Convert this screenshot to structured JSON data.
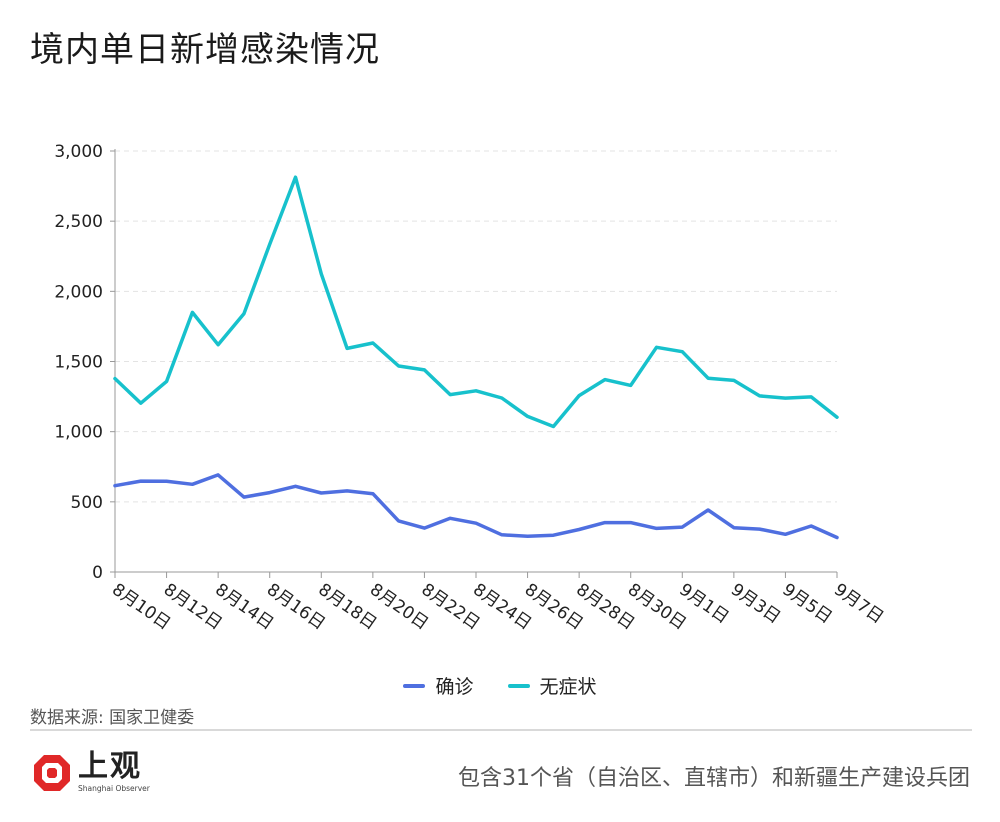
{
  "page": {
    "title": "境内单日新增感染情况"
  },
  "chart_data": {
    "type": "line",
    "title": "境内单日新增感染情况",
    "categories": [
      "8月10日",
      "8月11日",
      "8月12日",
      "8月13日",
      "8月14日",
      "8月15日",
      "8月16日",
      "8月17日",
      "8月18日",
      "8月19日",
      "8月20日",
      "8月21日",
      "8月22日",
      "8月23日",
      "8月24日",
      "8月25日",
      "8月26日",
      "8月27日",
      "8月28日",
      "8月29日",
      "8月30日",
      "8月31日",
      "9月1日",
      "9月2日",
      "9月3日",
      "9月4日",
      "9月5日",
      "9月6日",
      "9月7日"
    ],
    "xticks": [
      "8月10日",
      "8月12日",
      "8月14日",
      "8月16日",
      "8月18日",
      "8月20日",
      "8月22日",
      "8月24日",
      "8月26日",
      "8月28日",
      "8月30日",
      "9月1日",
      "9月3日",
      "9月5日",
      "9月7日"
    ],
    "yticks": [
      "0",
      "500",
      "1,000",
      "1,500",
      "2,000",
      "2,500",
      "3,000"
    ],
    "ylim": [
      0,
      3000
    ],
    "grid": true,
    "legend_position": "bottom-center",
    "series": [
      {
        "name": "确诊",
        "color": "#4f6fe0",
        "values": [
          615,
          648,
          647,
          625,
          692,
          534,
          566,
          611,
          563,
          578,
          558,
          364,
          313,
          383,
          348,
          265,
          255,
          262,
          303,
          352,
          352,
          311,
          320,
          442,
          316,
          306,
          269,
          328,
          246
        ]
      },
      {
        "name": "无症状",
        "color": "#17c1cc",
        "values": [
          1378,
          1203,
          1358,
          1850,
          1620,
          1840,
          2335,
          2813,
          2124,
          1593,
          1632,
          1468,
          1440,
          1264,
          1291,
          1240,
          1109,
          1037,
          1257,
          1371,
          1330,
          1601,
          1570,
          1381,
          1365,
          1255,
          1239,
          1248,
          1103
        ]
      }
    ]
  },
  "source": "数据来源: 国家卫健委",
  "logo": {
    "name": "上观",
    "subtitle": "Shanghai Observer"
  },
  "footnote": "包含31个省（自治区、直辖市）和新疆生产建设兵团"
}
